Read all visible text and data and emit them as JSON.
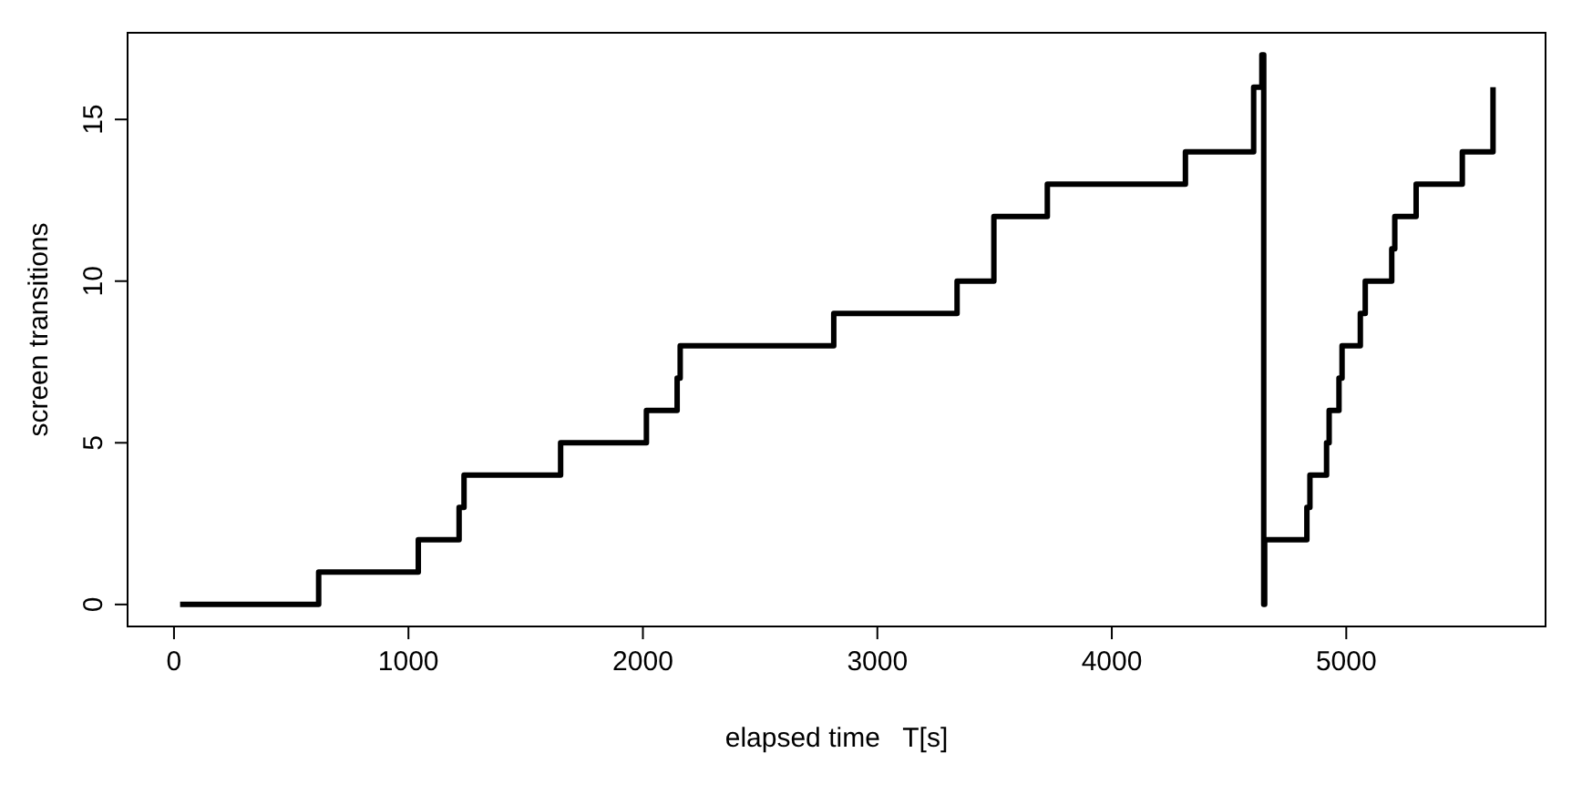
{
  "chart_data": {
    "type": "step",
    "xlabel": "elapsed time   T[s]",
    "ylabel": "screen transitions",
    "xlim": [
      -198,
      5850
    ],
    "ylim": [
      -0.68,
      17.68
    ],
    "xticks": [
      0,
      1000,
      2000,
      3000,
      4000,
      5000
    ],
    "yticks": [
      0,
      5,
      10,
      15
    ],
    "grid": false,
    "marker": "none",
    "line_style": "solid",
    "series": [
      {
        "color": "#000000",
        "x": [
          26,
          617,
          1042,
          1216,
          1237,
          1649,
          2015,
          2146,
          2159,
          2814,
          3340,
          3497,
          3725,
          4314,
          4605,
          4640,
          4648,
          4652,
          4832,
          4845,
          4916,
          4927,
          4969,
          4982,
          5060,
          5081,
          5194,
          5207,
          5298,
          5495,
          5626
        ],
        "values": [
          0,
          1,
          2,
          3,
          4,
          5,
          6,
          7,
          8,
          9,
          10,
          12,
          13,
          14,
          16,
          17,
          0,
          2,
          3,
          4,
          5,
          6,
          7,
          8,
          9,
          10,
          11,
          12,
          13,
          14,
          16
        ]
      }
    ]
  }
}
